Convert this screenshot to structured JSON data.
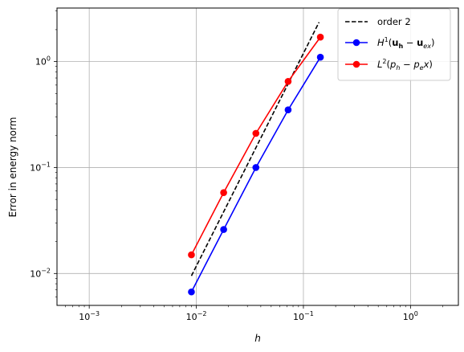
{
  "chart_data": {
    "type": "line",
    "xscale": "log",
    "yscale": "log",
    "xlim": [
      0.0005,
      2.8
    ],
    "ylim": [
      0.005,
      3.2
    ],
    "xlabel": "h",
    "ylabel": "Error in energy norm",
    "grid": true,
    "legend_position": "top-right",
    "x_ticks": [
      {
        "value": 0.001,
        "mant": "10",
        "exp": "−3"
      },
      {
        "value": 0.01,
        "mant": "10",
        "exp": "−2"
      },
      {
        "value": 0.1,
        "mant": "10",
        "exp": "−1"
      },
      {
        "value": 1,
        "mant": "10",
        "exp": "0"
      }
    ],
    "y_ticks": [
      {
        "value": 0.01,
        "mant": "10",
        "exp": "−2"
      },
      {
        "value": 0.1,
        "mant": "10",
        "exp": "−1"
      },
      {
        "value": 1,
        "mant": "10",
        "exp": "0"
      }
    ],
    "series": [
      {
        "name": "order 2",
        "color": "#000000",
        "dash": true,
        "marker": false,
        "x": [
          0.009,
          0.14
        ],
        "y": [
          0.0095,
          2.35
        ]
      },
      {
        "name": "H^1(u_h - u_ex)",
        "color": "#0000ff",
        "dash": false,
        "marker": true,
        "x": [
          0.009,
          0.018,
          0.036,
          0.072,
          0.144
        ],
        "y": [
          0.0067,
          0.026,
          0.1,
          0.35,
          1.1
        ]
      },
      {
        "name": "L^2(p_h - p_e x)",
        "color": "#ff0000",
        "dash": false,
        "marker": true,
        "x": [
          0.009,
          0.018,
          0.036,
          0.072,
          0.144
        ],
        "y": [
          0.015,
          0.058,
          0.21,
          0.65,
          1.7
        ]
      }
    ]
  }
}
